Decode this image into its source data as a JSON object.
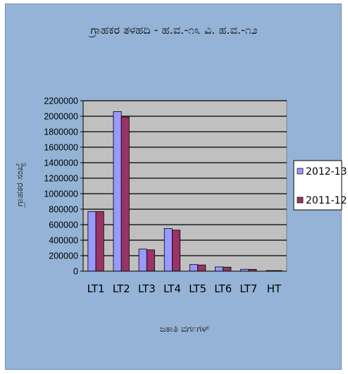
{
  "chart_data": {
    "type": "bar",
    "title": "ಗ್ರಾಹಕರ ತಳಹದಿ - ಹ.ವ.-೧೩ ವಿ. ಹ.ವ.-೧೨",
    "xlabel": "ಜಕಾತಿ ವರ್ಗಗಳ್",
    "ylabel": "ಗ್ರಾಹಕರ ಸಂಖ್ಯೆ",
    "categories": [
      "LT1",
      "LT2",
      "LT3",
      "LT4",
      "LT5",
      "LT6",
      "LT7",
      "HT"
    ],
    "ylim": [
      0,
      2200000
    ],
    "yticks": [
      0,
      200000,
      400000,
      600000,
      800000,
      1000000,
      1200000,
      1400000,
      1600000,
      1800000,
      2000000,
      2200000
    ],
    "grid": true,
    "legend_position": "right",
    "series": [
      {
        "name": "2012-13",
        "color": "#9999ff",
        "values": [
          770000,
          2060000,
          285000,
          550000,
          85000,
          55000,
          25000,
          8000
        ]
      },
      {
        "name": "2011-12",
        "color": "#993366",
        "values": [
          770000,
          1990000,
          275000,
          530000,
          80000,
          52000,
          24000,
          7500
        ]
      }
    ]
  },
  "colors": {
    "background": "#95b3d7",
    "plot_area": "#c0c0c0"
  }
}
